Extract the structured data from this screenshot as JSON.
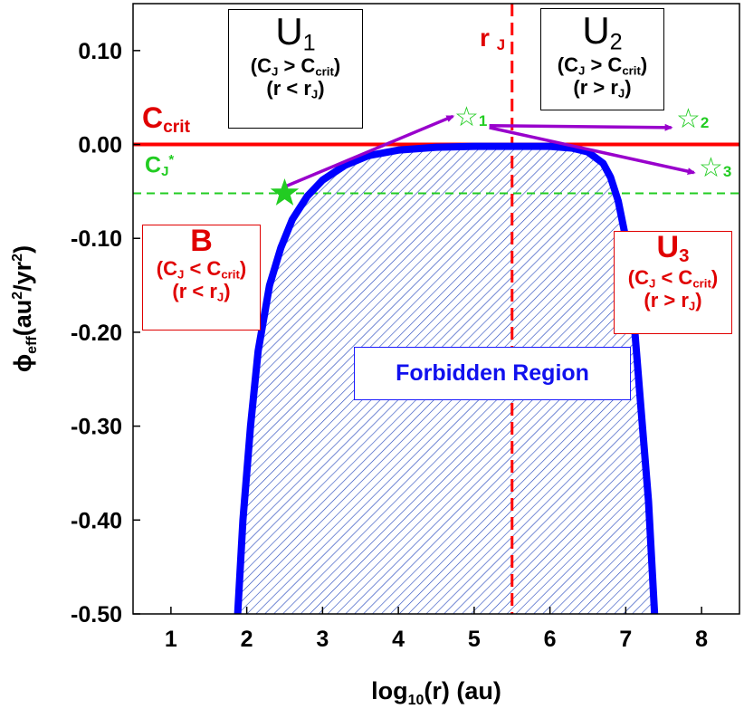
{
  "chart_data": {
    "type": "line",
    "xlabel": "log₁₀(r) (au)",
    "ylabel": "ϕeff(au²/yr²)",
    "xlim": [
      0.5,
      8.5
    ],
    "ylim": [
      -0.5,
      0.15
    ],
    "x_ticks": [
      1,
      2,
      3,
      4,
      5,
      6,
      7,
      8
    ],
    "x_tick_labels": [
      "1",
      "2",
      "3",
      "4",
      "5",
      "6",
      "7",
      "8"
    ],
    "y_ticks": [
      0.1,
      0.0,
      -0.1,
      -0.2,
      -0.3,
      -0.4,
      -0.5
    ],
    "y_tick_labels": [
      "0.10",
      "0.00",
      "-0.10",
      "-0.20",
      "-0.30",
      "-0.40",
      "-0.50"
    ],
    "series": [
      {
        "color": "#0000ff",
        "x": [
          1.88,
          1.95,
          2.05,
          2.15,
          2.3,
          2.45,
          2.6,
          2.8,
          3.0,
          3.3,
          3.6,
          4.0,
          4.5,
          5.0,
          5.5,
          6.0,
          6.3,
          6.5,
          6.7,
          6.8,
          6.9,
          7.0,
          7.1,
          7.2,
          7.3,
          7.38
        ],
        "y": [
          -0.5,
          -0.4,
          -0.3,
          -0.22,
          -0.15,
          -0.11,
          -0.08,
          -0.055,
          -0.038,
          -0.022,
          -0.012,
          -0.006,
          -0.003,
          -0.002,
          -0.002,
          -0.002,
          -0.004,
          -0.008,
          -0.02,
          -0.035,
          -0.06,
          -0.1,
          -0.18,
          -0.28,
          -0.38,
          -0.5
        ]
      }
    ],
    "ccrit_y": 0.0,
    "cj_star_y": -0.052,
    "rj_x": 5.5,
    "stars": [
      {
        "name": "start",
        "x": 2.5,
        "y": -0.052,
        "filled": true
      },
      {
        "name": "1",
        "x": 4.95,
        "y": 0.03,
        "filled": false
      },
      {
        "name": "2",
        "x": 7.8,
        "y": 0.03,
        "filled": false
      },
      {
        "name": "3",
        "x": 8.15,
        "y": -0.021,
        "filled": false
      }
    ],
    "arrows": [
      {
        "from": [
          2.5,
          -0.045
        ],
        "to": [
          4.72,
          0.03
        ]
      },
      {
        "from": [
          5.2,
          0.02
        ],
        "to": [
          7.6,
          0.018
        ]
      },
      {
        "from": [
          5.2,
          0.018
        ],
        "to": [
          7.9,
          -0.03
        ]
      }
    ],
    "colors": {
      "curve": "#0000ff",
      "ccrit": "#ff0000",
      "cj_star": "#22cc22",
      "rj": "#ff0000",
      "arrow": "#9900cc",
      "hatch": "#2244bb"
    }
  },
  "labels": {
    "ccrit": "Ccrit",
    "cj_star": "CJ*",
    "rj": "r J",
    "star1": "1",
    "star2": "2",
    "star3": "3",
    "star_glyph": "☆"
  },
  "boxes": {
    "u1": {
      "title": "U1",
      "cond": "(CJ > Ccrit)",
      "range": "(r < rJ)"
    },
    "u2": {
      "title": "U2",
      "cond": "(CJ > Ccrit)",
      "range": "(r > rJ)"
    },
    "b": {
      "title": "B",
      "cond": "(CJ < Ccrit)",
      "range": "(r < rJ)"
    },
    "u3": {
      "title": "U3",
      "cond": "(CJ < Ccrit)",
      "range": "(r > rJ)"
    },
    "forbidden": "Forbidden Region"
  }
}
